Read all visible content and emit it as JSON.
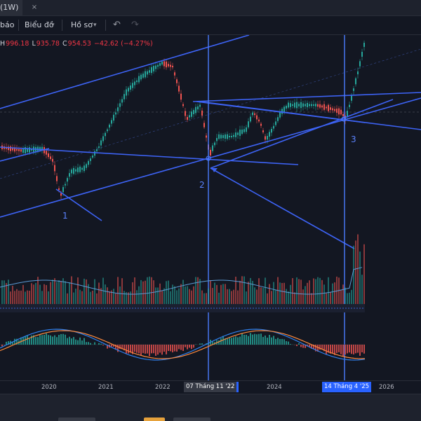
{
  "tab": {
    "title": "(1W)",
    "close": "×"
  },
  "toolbar": {
    "alerts": "báo",
    "chart_types": "Biểu đồ",
    "profile": "Hồ sơ",
    "undo_icon": "undo-icon",
    "redo_icon": "redo-icon"
  },
  "legend": {
    "h_label": "H",
    "h_value": "996.18",
    "l_label": "L",
    "l_value": "935.78",
    "c_label": "C",
    "c_value": "954.53",
    "change": "−42.62 (−4.27%)"
  },
  "annotations": {
    "n1": "1",
    "n2": "2",
    "n3": "3"
  },
  "xaxis": {
    "ticks": [
      "2020",
      "2021",
      "2022",
      "2024",
      "2026"
    ],
    "crosshair1": "07 Tháng 11 '22",
    "crosshair2": "14 Tháng 4 '25"
  },
  "colors": {
    "up": "#26a69a",
    "down": "#ef5350",
    "lines": "#3d63f5",
    "crosshair": "#4c7dff",
    "ma": "#5b9bd5",
    "macd": "#2f80ed",
    "signal": "#ff8a3d"
  }
}
